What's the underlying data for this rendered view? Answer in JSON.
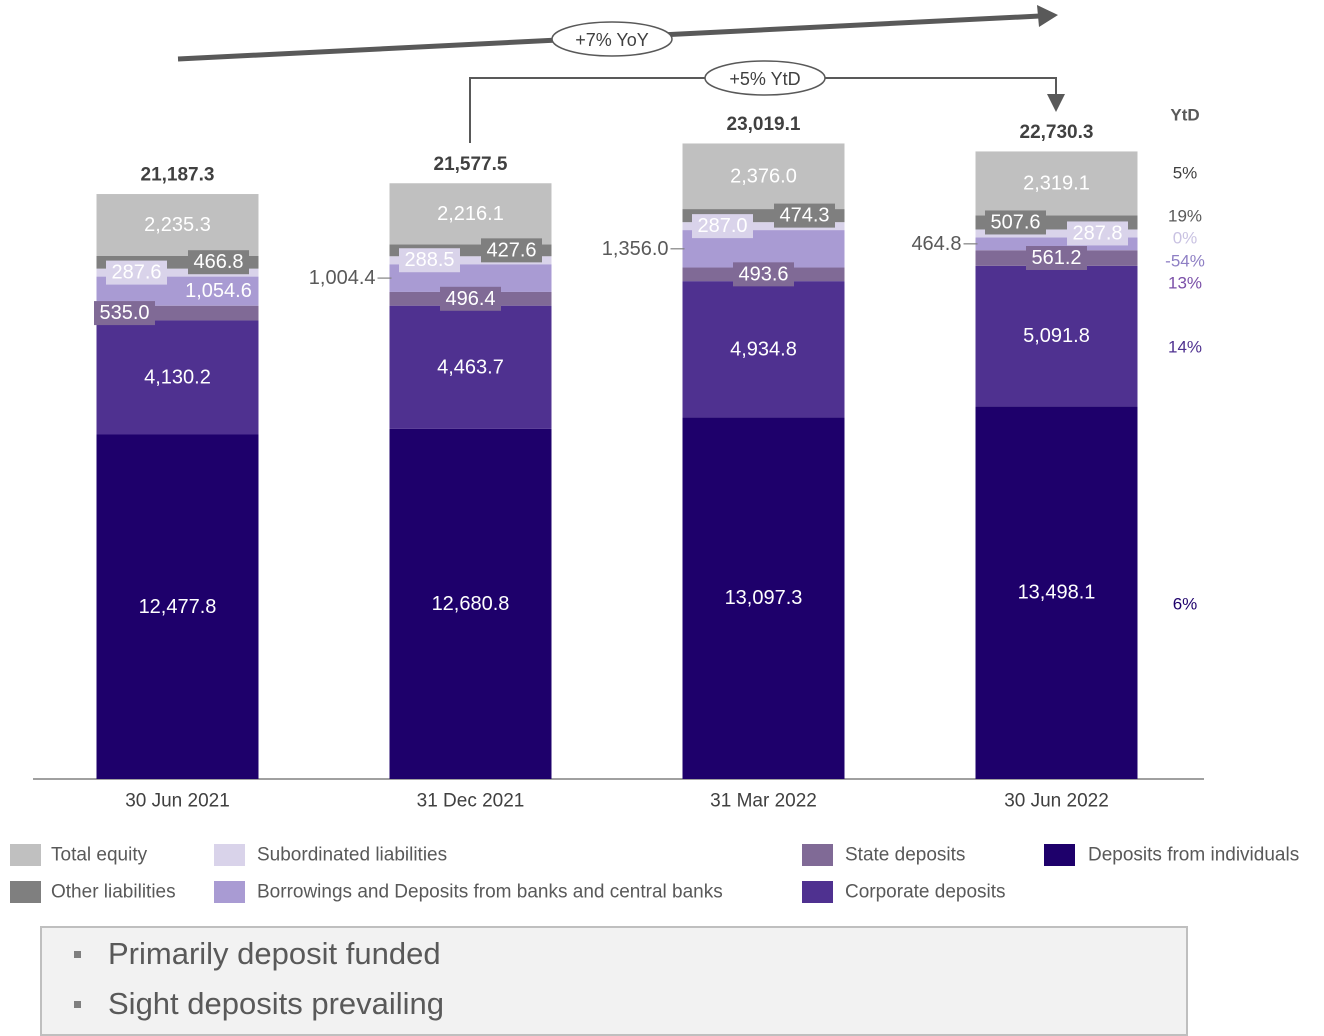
{
  "colors": {
    "Total equity": "#c0c0c0",
    "Other liabilities": "#7f7f7f",
    "Subordinated liabilities": "#d9d3ea",
    "Borrowings and Deposits from banks and central banks": "#a99bd3",
    "State deposits": "#806a96",
    "Corporate deposits": "#4f3190",
    "Deposits from individuals": "#1e006b",
    "text_dark": "#404040",
    "text_gray": "#595959",
    "arrow": "#595959"
  },
  "chart_data": {
    "type": "bar",
    "stacked": true,
    "categories": [
      "30 Jun 2021",
      "31 Dec 2021",
      "31 Mar 2022",
      "30 Jun 2022"
    ],
    "series": [
      {
        "name": "Deposits from individuals",
        "values": [
          12477.8,
          12680.8,
          13097.3,
          13498.1
        ],
        "labels": [
          "12,477.8",
          "12,680.8",
          "13,097.3",
          "13,498.1"
        ]
      },
      {
        "name": "Corporate deposits",
        "values": [
          4130.2,
          4463.7,
          4934.8,
          5091.8
        ],
        "labels": [
          "4,130.2",
          "4,463.7",
          "4,934.8",
          "5,091.8"
        ]
      },
      {
        "name": "State deposits",
        "values": [
          535.0,
          496.4,
          493.6,
          561.2
        ],
        "labels": [
          "535.0",
          "496.4",
          "493.6",
          "561.2"
        ]
      },
      {
        "name": "Borrowings and Deposits from banks and central banks",
        "values": [
          1054.6,
          1004.4,
          1356.0,
          464.8
        ],
        "labels": [
          "1,054.6",
          "1,004.4",
          "1,356.0",
          "464.8"
        ]
      },
      {
        "name": "Subordinated liabilities",
        "values": [
          287.6,
          288.5,
          287.0,
          287.8
        ],
        "labels": [
          "287.6",
          "288.5",
          "287.0",
          "287.8"
        ]
      },
      {
        "name": "Other liabilities",
        "values": [
          466.8,
          427.6,
          474.3,
          507.6
        ],
        "labels": [
          "466.8",
          "427.6",
          "474.3",
          "507.6"
        ]
      },
      {
        "name": "Total equity",
        "values": [
          2235.3,
          2216.1,
          2376.0,
          2319.1
        ],
        "labels": [
          "2,235.3",
          "2,216.1",
          "2,376.0",
          "2,319.1"
        ]
      }
    ],
    "totals": [
      21187.3,
      21577.5,
      23019.1,
      22730.3
    ],
    "total_labels": [
      "21,187.3",
      "21,577.5",
      "23,019.1",
      "22,730.3"
    ],
    "ylim": [
      0,
      25000
    ],
    "ytd_header": "YtD",
    "ytd_changes": [
      {
        "series": "Total equity",
        "text": "5%"
      },
      {
        "series": "Other liabilities",
        "text": "19%"
      },
      {
        "series": "Subordinated liabilities",
        "text": "0%"
      },
      {
        "series": "Borrowings and Deposits from banks and central banks",
        "text": "-54%"
      },
      {
        "series": "State deposits",
        "text": "13%"
      },
      {
        "series": "Corporate deposits",
        "text": "14%"
      },
      {
        "series": "Deposits from individuals",
        "text": "6%"
      }
    ],
    "annotations": {
      "yoy": "+7% YoY",
      "ytd": "+5% YtD"
    },
    "legend_position": "bottom",
    "grid": false
  },
  "legend": [
    [
      "Total equity",
      "Subordinated liabilities",
      "State deposits",
      "Deposits from individuals"
    ],
    [
      "Other liabilities",
      "Borrowings and Deposits from banks and central banks",
      "Corporate deposits"
    ]
  ],
  "notes": {
    "items": [
      "Primarily deposit funded",
      "Sight deposits prevailing"
    ]
  }
}
